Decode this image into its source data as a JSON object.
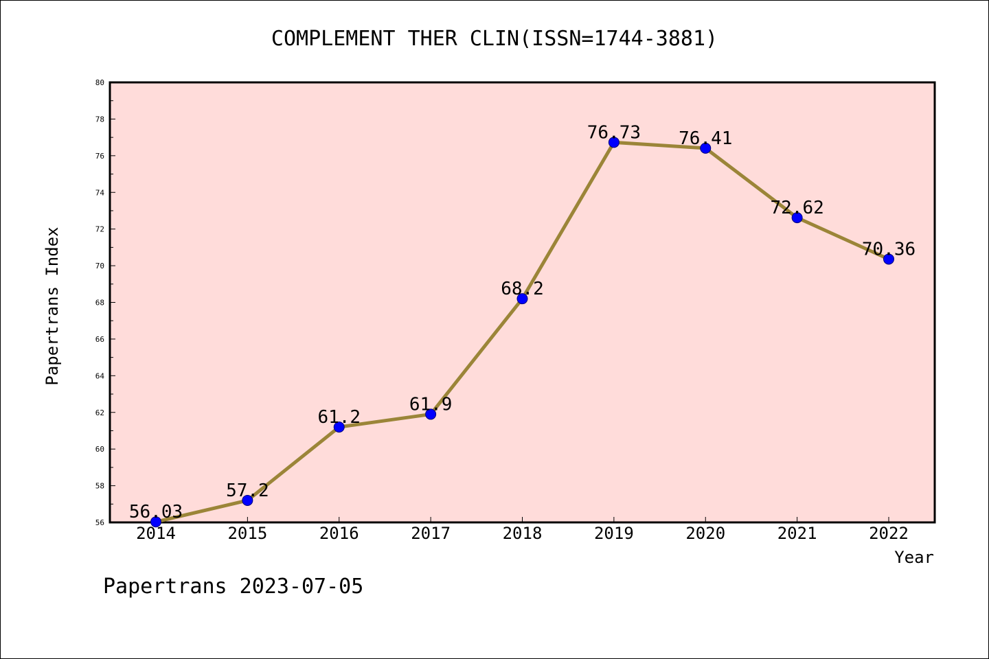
{
  "chart_data": {
    "type": "line",
    "title": "COMPLEMENT THER CLIN(ISSN=1744-3881)",
    "xlabel": "Year",
    "ylabel": "Papertrans Index",
    "categories": [
      "2014",
      "2015",
      "2016",
      "2017",
      "2018",
      "2019",
      "2020",
      "2021",
      "2022"
    ],
    "values": [
      56.03,
      57.2,
      61.2,
      61.9,
      68.2,
      76.73,
      76.41,
      72.62,
      70.36
    ],
    "data_labels": [
      "56.03",
      "57.2",
      "61.2",
      "61.9",
      "68.2",
      "76.73",
      "76.41",
      "72.62",
      "70.36"
    ],
    "ylim": [
      56,
      80
    ],
    "yticks": [
      56,
      58,
      60,
      62,
      64,
      66,
      68,
      70,
      72,
      74,
      76,
      78,
      80
    ],
    "grid": false,
    "colors": {
      "plot_background": "#FFDCDA",
      "line": "#9B8538",
      "marker": "#0000FF",
      "axis": "#000000"
    }
  },
  "footer": "Papertrans 2023-07-05"
}
